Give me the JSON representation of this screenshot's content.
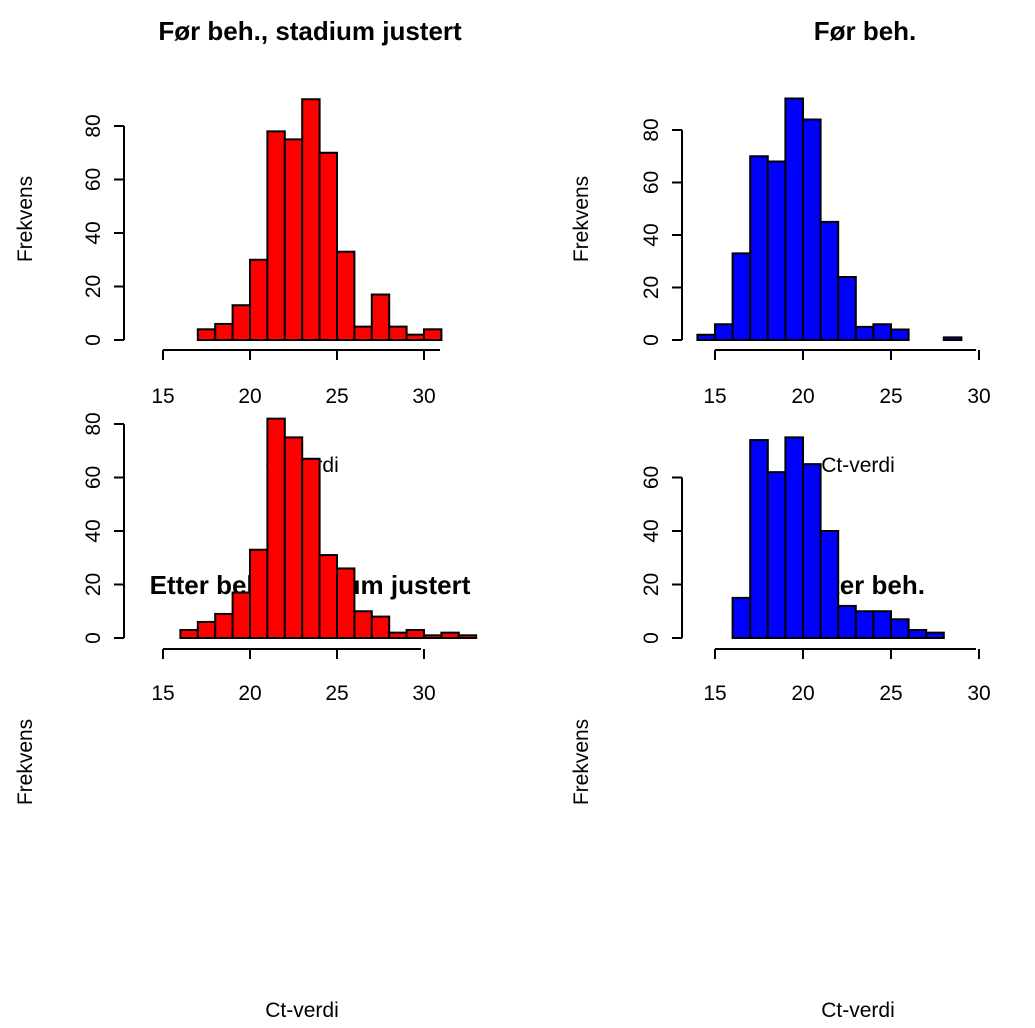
{
  "colors": {
    "red_fill": "#ff0000",
    "blue_fill": "#0000ff",
    "border": "#000000"
  },
  "chart_data": [
    {
      "type": "bar",
      "title": "Før beh., stadium justert",
      "xlabel": "Ct-verdi",
      "ylabel": "Frekvens",
      "color": "#ff0000",
      "bin_width": 1,
      "bin_starts": [
        17,
        18,
        19,
        20,
        21,
        22,
        23,
        24,
        25,
        26,
        27,
        28,
        29,
        30
      ],
      "values": [
        4,
        6,
        13,
        30,
        78,
        75,
        90,
        70,
        33,
        5,
        17,
        5,
        2,
        4
      ],
      "xlim": [
        15,
        31
      ],
      "ylim": [
        0,
        90
      ],
      "xticks": [
        15,
        20,
        25,
        30
      ],
      "yticks": [
        0,
        20,
        40,
        60,
        80
      ]
    },
    {
      "type": "bar",
      "title": "Før beh.",
      "xlabel": "Ct-verdi",
      "ylabel": "Frekvens",
      "color": "#0000ff",
      "bin_width": 1,
      "bin_starts": [
        14,
        15,
        16,
        17,
        18,
        19,
        20,
        21,
        22,
        23,
        24,
        25,
        26,
        27,
        28
      ],
      "values": [
        2,
        6,
        33,
        70,
        68,
        92,
        84,
        45,
        24,
        5,
        6,
        4,
        0,
        0,
        1
      ],
      "xlim": [
        15,
        30
      ],
      "ylim": [
        0,
        92
      ],
      "xticks": [
        15,
        20,
        25,
        30
      ],
      "yticks": [
        0,
        20,
        40,
        60,
        80
      ]
    },
    {
      "type": "bar",
      "title": "Etter beh., stadium justert",
      "xlabel": "Ct-verdi",
      "ylabel": "Frekvens",
      "color": "#ff0000",
      "bin_width": 1,
      "bin_starts": [
        16,
        17,
        18,
        19,
        20,
        21,
        22,
        23,
        24,
        25,
        26,
        27,
        28,
        29,
        30,
        31,
        32
      ],
      "values": [
        3,
        6,
        9,
        17,
        33,
        82,
        75,
        67,
        31,
        26,
        10,
        8,
        2,
        3,
        1,
        2,
        1
      ],
      "xlim": [
        15,
        33
      ],
      "ylim": [
        0,
        82
      ],
      "xticks": [
        15,
        20,
        25,
        30
      ],
      "yticks": [
        0,
        20,
        40,
        60,
        80
      ]
    },
    {
      "type": "bar",
      "title": "Etter beh.",
      "xlabel": "Ct-verdi",
      "ylabel": "Frekvens",
      "color": "#0000ff",
      "bin_width": 1,
      "bin_starts": [
        16,
        17,
        18,
        19,
        20,
        21,
        22,
        23,
        24,
        25,
        26,
        27,
        28,
        29,
        30,
        31,
        32,
        33
      ],
      "values": [
        15,
        74,
        62,
        75,
        65,
        40,
        12,
        10,
        10,
        7,
        3,
        2,
        0,
        0,
        0,
        0,
        0,
        0
      ],
      "xlim": [
        15,
        34
      ],
      "ylim": [
        0,
        75
      ],
      "xticks": [
        15,
        20,
        25,
        30
      ],
      "yticks": [
        0,
        20,
        40,
        60
      ]
    }
  ]
}
